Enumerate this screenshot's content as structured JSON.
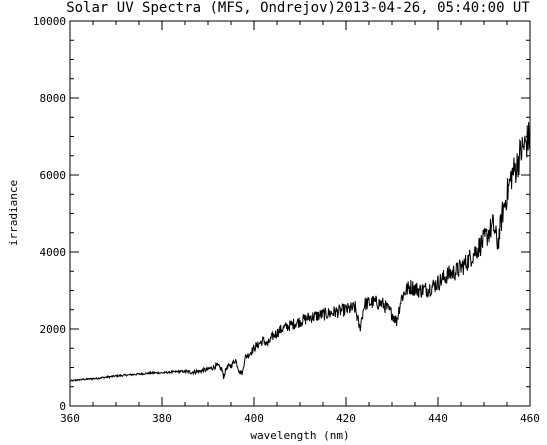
{
  "chart_data": {
    "type": "line",
    "title": "Solar UV Spectra (MFS, Ondrejov)2013-04-26, 05:40:00 UT",
    "xlabel": "wavelength (nm)",
    "ylabel": "irradiance",
    "xlim": [
      360,
      460
    ],
    "ylim": [
      0,
      10000
    ],
    "x_ticks": [
      "360",
      "380",
      "400",
      "420",
      "440",
      "460"
    ],
    "y_ticks": [
      "0",
      "2000",
      "4000",
      "6000",
      "8000",
      "10000"
    ],
    "grid": false,
    "legend": "none",
    "line_color": "#000000",
    "series": [
      {
        "x": [
          360,
          362,
          364,
          366,
          368,
          370,
          372,
          374,
          376,
          378,
          380,
          382,
          384,
          386,
          388,
          390,
          391,
          392,
          393,
          393.4,
          394,
          395,
          396,
          396.8,
          397.5,
          398,
          399,
          400,
          401,
          402,
          403,
          404,
          405,
          406,
          408,
          410,
          412,
          414,
          416,
          418,
          420,
          422,
          423,
          424,
          426,
          428,
          430,
          431,
          432,
          433,
          434,
          436,
          438,
          440,
          442,
          444,
          446,
          448,
          450,
          452,
          453,
          454,
          455,
          456,
          457,
          458,
          459,
          460
        ],
        "y": [
          650,
          680,
          700,
          720,
          750,
          780,
          800,
          820,
          840,
          860,
          860,
          880,
          900,
          880,
          900,
          950,
          1000,
          1050,
          950,
          750,
          1000,
          1050,
          1200,
          900,
          850,
          1250,
          1350,
          1500,
          1600,
          1700,
          1600,
          1800,
          1900,
          2000,
          2100,
          2200,
          2300,
          2350,
          2400,
          2450,
          2500,
          2550,
          2000,
          2650,
          2700,
          2650,
          2400,
          2200,
          2800,
          3000,
          3100,
          3000,
          3050,
          3200,
          3400,
          3500,
          3700,
          4000,
          4300,
          4700,
          4200,
          5000,
          5500,
          6000,
          6200,
          6600,
          6800,
          7000
        ]
      }
    ]
  }
}
